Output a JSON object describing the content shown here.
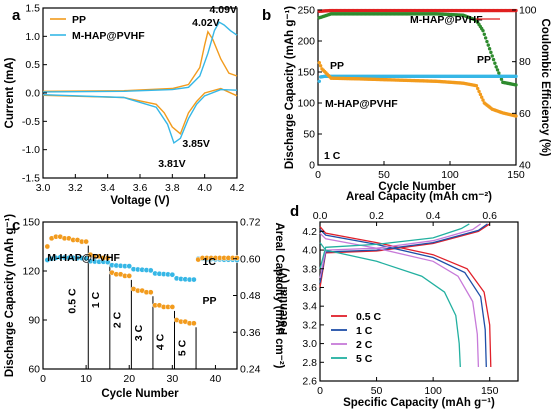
{
  "chart_data": [
    {
      "panel": "a",
      "type": "line",
      "xlabel": "Voltage (V)",
      "ylabel": "Current (mA)",
      "xlim": [
        3.0,
        4.2
      ],
      "ylim": [
        -1.5,
        1.5
      ],
      "xticks": [
        "3.0",
        "3.2",
        "3.4",
        "3.6",
        "3.8",
        "4.0",
        "4.2"
      ],
      "yticks": [
        "-1.5",
        "-1.0",
        "-0.5",
        "0.0",
        "0.5",
        "1.0",
        "1.5"
      ],
      "legend_position": "top-left",
      "series": [
        {
          "name": "PP",
          "color": "#f29b1d",
          "oxidation": {
            "x": [
              3.0,
              3.5,
              3.8,
              3.9,
              3.97,
              4.0,
              4.02,
              4.05,
              4.1,
              4.15,
              4.2
            ],
            "y": [
              0.03,
              0.04,
              0.08,
              0.15,
              0.45,
              0.85,
              1.08,
              0.95,
              0.6,
              0.35,
              0.3
            ]
          },
          "reduction": {
            "x": [
              4.2,
              4.1,
              4.0,
              3.95,
              3.9,
              3.85,
              3.8,
              3.75,
              3.7,
              3.5,
              3.0
            ],
            "y": [
              -0.05,
              0.08,
              0.0,
              -0.15,
              -0.35,
              -0.72,
              -0.6,
              -0.35,
              -0.2,
              -0.08,
              -0.04
            ]
          }
        },
        {
          "name": "M-HAP@PVHF",
          "color": "#36b7e6",
          "oxidation": {
            "x": [
              3.0,
              3.5,
              3.8,
              3.9,
              3.97,
              4.02,
              4.06,
              4.09,
              4.12,
              4.16,
              4.2
            ],
            "y": [
              0.02,
              0.03,
              0.06,
              0.1,
              0.3,
              0.7,
              1.1,
              1.25,
              1.2,
              1.1,
              1.02
            ]
          },
          "reduction": {
            "x": [
              4.2,
              4.1,
              4.0,
              3.95,
              3.9,
              3.85,
              3.81,
              3.77,
              3.7,
              3.5,
              3.0
            ],
            "y": [
              0.05,
              0.06,
              -0.05,
              -0.2,
              -0.45,
              -0.8,
              -0.88,
              -0.55,
              -0.25,
              -0.08,
              -0.03
            ]
          }
        }
      ],
      "annotations": [
        "4.02V",
        "4.09V",
        "3.85V",
        "3.81V"
      ]
    },
    {
      "panel": "b",
      "type": "scatter",
      "xlabel": "Cycle Number",
      "ylabel": "Discharge Capacity (mAh g⁻¹)",
      "ylabel_right": "Coulombic Efficiency (%)",
      "xlim": [
        0,
        150
      ],
      "ylim": [
        0,
        250
      ],
      "ylim_right": [
        40,
        100
      ],
      "xticks": [
        "0",
        "50",
        "100",
        "150"
      ],
      "yticks": [
        "0",
        "50",
        "100",
        "150",
        "200",
        "250"
      ],
      "yticks_right": [
        "40",
        "60",
        "80",
        "100"
      ],
      "annotation": "1 C",
      "series": [
        {
          "name": "M-HAP@PVHF",
          "kind": "coulombic efficiency",
          "color": "#e02020",
          "x": [
            1,
            10,
            30,
            60,
            90,
            110,
            130,
            150
          ],
          "y": [
            99.5,
            99.8,
            99.8,
            99.8,
            99.8,
            99.8,
            99.8,
            99.8
          ]
        },
        {
          "name": "PP",
          "kind": "coulombic efficiency",
          "color": "#2e8b2e",
          "x": [
            1,
            10,
            30,
            60,
            90,
            110,
            120,
            125,
            130,
            135,
            140,
            150
          ],
          "y": [
            97,
            98.5,
            98.5,
            98.5,
            98.5,
            98,
            96,
            92,
            85,
            78,
            72,
            71
          ]
        },
        {
          "name": "M-HAP@PVHF",
          "kind": "discharge capacity",
          "color": "#36b7e6",
          "x": [
            1,
            2,
            5,
            30,
            60,
            90,
            120,
            150
          ],
          "y": [
            135,
            142,
            143,
            143,
            143,
            143,
            143,
            143
          ]
        },
        {
          "name": "PP",
          "kind": "discharge capacity",
          "color": "#f29b1d",
          "x": [
            1,
            3,
            10,
            30,
            60,
            90,
            110,
            120,
            126,
            132,
            140,
            150
          ],
          "y": [
            165,
            155,
            140,
            139,
            137,
            135,
            132,
            128,
            100,
            90,
            84,
            79
          ]
        }
      ]
    },
    {
      "panel": "c",
      "type": "scatter",
      "xlabel": "Cycle Number",
      "ylabel": "Discharge Capacity (mAh g⁻¹)",
      "ylabel_right": "Areal Capacity (mAh cm⁻²)",
      "xlim": [
        0,
        45
      ],
      "ylim": [
        60,
        150
      ],
      "ylim_right": [
        0.24,
        0.72
      ],
      "xticks": [
        "0",
        "10",
        "20",
        "30",
        "40"
      ],
      "yticks": [
        "60",
        "90",
        "120",
        "150"
      ],
      "yticks_right": [
        "0.24",
        "0.36",
        "0.48",
        "0.60",
        "0.72"
      ],
      "rate_labels": [
        "0.5 C",
        "1 C",
        "2 C",
        "3 C",
        "4 C",
        "5 C",
        "1C"
      ],
      "series": [
        {
          "name": "M-HAP@PVHF",
          "color": "#36b7e6",
          "kind": "areal capacity",
          "x": [
            1,
            2,
            3,
            4,
            5,
            6,
            7,
            8,
            9,
            10,
            11,
            12,
            13,
            14,
            15,
            16,
            17,
            18,
            19,
            20,
            21,
            22,
            23,
            24,
            25,
            26,
            27,
            28,
            29,
            30,
            31,
            32,
            33,
            34,
            35,
            36,
            37,
            38,
            39,
            40,
            41,
            42,
            43,
            44,
            45
          ],
          "y": [
            0.596,
            0.6,
            0.603,
            0.605,
            0.604,
            0.603,
            0.603,
            0.602,
            0.602,
            0.601,
            0.592,
            0.591,
            0.59,
            0.59,
            0.589,
            0.579,
            0.578,
            0.577,
            0.576,
            0.576,
            0.566,
            0.565,
            0.564,
            0.563,
            0.562,
            0.552,
            0.551,
            0.55,
            0.549,
            0.548,
            0.536,
            0.534,
            0.533,
            0.532,
            0.532,
            0.6,
            0.6,
            0.599,
            0.599,
            0.598,
            0.598,
            0.597,
            0.597,
            0.597,
            0.596
          ]
        },
        {
          "name": "PP",
          "color": "#f29b1d",
          "kind": "discharge capacity",
          "x": [
            1,
            2,
            3,
            4,
            5,
            6,
            7,
            8,
            9,
            10,
            11,
            12,
            13,
            14,
            15,
            16,
            17,
            18,
            19,
            20,
            21,
            22,
            23,
            24,
            25,
            26,
            27,
            28,
            29,
            30,
            31,
            32,
            33,
            34,
            35,
            36,
            37,
            38,
            39,
            40,
            41,
            42,
            43,
            44,
            45
          ],
          "y": [
            135,
            140,
            141,
            141,
            140,
            140,
            139,
            139,
            138,
            138,
            130,
            129,
            129,
            128,
            128,
            119,
            118,
            118,
            117,
            117,
            109,
            108,
            108,
            107,
            107,
            99,
            99,
            98,
            98,
            98,
            90,
            89,
            89,
            88,
            88,
            127,
            128,
            128,
            128,
            128,
            128,
            128,
            128,
            128,
            128
          ]
        }
      ]
    },
    {
      "panel": "d",
      "type": "line",
      "xlabel": "Specific Capacity (mAh g⁻¹)",
      "xlabel_top": "Areal Capacity (mAh cm⁻²)",
      "ylabel": "Potential (V)",
      "xlim": [
        0,
        175
      ],
      "xlim_top": [
        0,
        0.7
      ],
      "ylim": [
        2.6,
        4.3
      ],
      "xticks": [
        "0",
        "50",
        "100",
        "150"
      ],
      "xticks_top": [
        "0.0",
        "0.2",
        "0.4",
        "0.6"
      ],
      "yticks": [
        "2.6",
        "2.8",
        "3.0",
        "3.2",
        "3.4",
        "3.6",
        "3.8",
        "4.0",
        "4.2"
      ],
      "legend_position": "bottom-left",
      "series": [
        {
          "name": "0.5 C",
          "color": "#e0202a",
          "charge": {
            "x": [
              0,
              5,
              50,
              100,
              140,
              150
            ],
            "y": [
              3.6,
              3.97,
              3.99,
              4.07,
              4.2,
              4.28
            ]
          },
          "discharge": {
            "x": [
              0,
              5,
              50,
              100,
              130,
              145,
              150,
              151
            ],
            "y": [
              4.25,
              4.18,
              4.08,
              3.95,
              3.8,
              3.55,
              3.2,
              2.75
            ]
          }
        },
        {
          "name": "1 C",
          "color": "#1f4fa8",
          "charge": {
            "x": [
              0,
              5,
              50,
              100,
              140,
              148
            ],
            "y": [
              3.65,
              3.98,
              4.0,
              4.08,
              4.21,
              4.28
            ]
          },
          "discharge": {
            "x": [
              0,
              5,
              50,
              100,
              128,
              142,
              146,
              147
            ],
            "y": [
              4.22,
              4.16,
              4.06,
              3.92,
              3.76,
              3.5,
              3.15,
              2.75
            ]
          }
        },
        {
          "name": "2 C",
          "color": "#c77ad9",
          "charge": {
            "x": [
              0,
              5,
              50,
              100,
              135,
              142
            ],
            "y": [
              3.7,
              4.0,
              4.02,
              4.1,
              4.22,
              4.28
            ]
          },
          "discharge": {
            "x": [
              0,
              5,
              50,
              100,
              122,
              135,
              139,
              140
            ],
            "y": [
              4.18,
              4.12,
              4.02,
              3.88,
              3.72,
              3.45,
              3.1,
              2.75
            ]
          }
        },
        {
          "name": "5 C",
          "color": "#22b0a0",
          "charge": {
            "x": [
              0,
              5,
              50,
              100,
              125,
              132
            ],
            "y": [
              3.8,
              4.03,
              4.06,
              4.13,
              4.23,
              4.28
            ]
          },
          "discharge": {
            "x": [
              0,
              5,
              50,
              90,
              110,
              120,
              123,
              124
            ],
            "y": [
              4.08,
              4.0,
              3.88,
              3.72,
              3.55,
              3.3,
              3.0,
              2.75
            ]
          }
        }
      ]
    }
  ]
}
